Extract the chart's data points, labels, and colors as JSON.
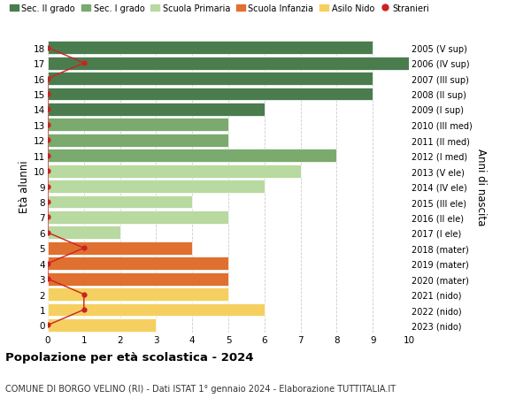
{
  "ages": [
    18,
    17,
    16,
    15,
    14,
    13,
    12,
    11,
    10,
    9,
    8,
    7,
    6,
    5,
    4,
    3,
    2,
    1,
    0
  ],
  "right_labels": [
    "2005 (V sup)",
    "2006 (IV sup)",
    "2007 (III sup)",
    "2008 (II sup)",
    "2009 (I sup)",
    "2010 (III med)",
    "2011 (II med)",
    "2012 (I med)",
    "2013 (V ele)",
    "2014 (IV ele)",
    "2015 (III ele)",
    "2016 (II ele)",
    "2017 (I ele)",
    "2018 (mater)",
    "2019 (mater)",
    "2020 (mater)",
    "2021 (nido)",
    "2022 (nido)",
    "2023 (nido)"
  ],
  "bar_values": [
    9,
    10,
    9,
    9,
    6,
    5,
    5,
    8,
    7,
    6,
    4,
    5,
    2,
    4,
    5,
    5,
    5,
    6,
    3
  ],
  "bar_colors": [
    "#4a7c4e",
    "#4a7c4e",
    "#4a7c4e",
    "#4a7c4e",
    "#4a7c4e",
    "#7aaa6e",
    "#7aaa6e",
    "#7aaa6e",
    "#b8d9a0",
    "#b8d9a0",
    "#b8d9a0",
    "#b8d9a0",
    "#b8d9a0",
    "#e07030",
    "#e07030",
    "#e07030",
    "#f5d060",
    "#f5d060",
    "#f5d060"
  ],
  "stranieri_values": [
    0,
    1,
    0,
    0,
    0,
    0,
    0,
    0,
    0,
    0,
    0,
    0,
    0,
    1,
    0,
    0,
    1,
    1,
    0
  ],
  "legend_labels": [
    "Sec. II grado",
    "Sec. I grado",
    "Scuola Primaria",
    "Scuola Infanzia",
    "Asilo Nido",
    "Stranieri"
  ],
  "legend_colors": [
    "#4a7c4e",
    "#7aaa6e",
    "#b8d9a0",
    "#e07030",
    "#f5d060",
    "#cc2222"
  ],
  "xlim": [
    0,
    10
  ],
  "ylabel": "Età alunni",
  "right_ylabel": "Anni di nascita",
  "title": "Popolazione per età scolastica - 2024",
  "subtitle": "COMUNE DI BORGO VELINO (RI) - Dati ISTAT 1° gennaio 2024 - Elaborazione TUTTITALIA.IT",
  "background_color": "#ffffff",
  "grid_color": "#cccccc",
  "stranieri_color": "#cc2222",
  "stranieri_line_color": "#cc2222"
}
